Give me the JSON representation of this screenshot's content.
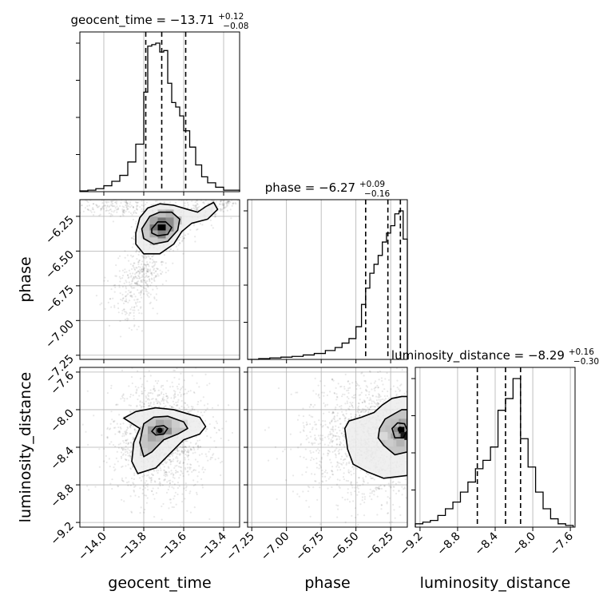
{
  "chart_data": {
    "type": "corner",
    "parameters": [
      {
        "name": "geocent_time",
        "axis_label": "geocent_time",
        "title": {
          "main": "geocent_time = −13.71",
          "plus": "+0.12",
          "minus": "−0.08"
        },
        "range": [
          -14.12,
          -13.32
        ],
        "ticks": [
          -14.0,
          -13.8,
          -13.6,
          -13.4
        ],
        "tick_labels": [
          "−14.0",
          "−13.8",
          "−13.6",
          "−13.4"
        ],
        "quantiles": [
          -13.79,
          -13.71,
          -13.59
        ],
        "histogram": {
          "edges": [
            -14.12,
            -14.08,
            -14.04,
            -14.0,
            -13.96,
            -13.92,
            -13.88,
            -13.84,
            -13.8,
            -13.78,
            -13.76,
            -13.74,
            -13.72,
            -13.7,
            -13.68,
            -13.66,
            -13.64,
            -13.62,
            -13.6,
            -13.57,
            -13.54,
            -13.51,
            -13.48,
            -13.44,
            -13.4,
            -13.32
          ],
          "counts": [
            0.5,
            1,
            2,
            4,
            7,
            11,
            20,
            32,
            67,
            98,
            99,
            100,
            94,
            95,
            73,
            60,
            57,
            51,
            41,
            30,
            18,
            10,
            6,
            3,
            1
          ]
        }
      },
      {
        "name": "phase",
        "axis_label": "phase",
        "title": {
          "main": "phase = −6.27",
          "plus": "+0.09",
          "minus": "−0.16"
        },
        "range": [
          -7.28,
          -6.13
        ],
        "ticks": [
          -7.25,
          -7.0,
          -6.75,
          -6.5,
          -6.25
        ],
        "tick_labels": [
          "−7.25",
          "−7.00",
          "−6.75",
          "−6.50",
          "−6.25"
        ],
        "quantiles": [
          -6.43,
          -6.27,
          -6.18
        ],
        "histogram": {
          "edges": [
            -7.28,
            -7.2,
            -7.12,
            -7.04,
            -6.96,
            -6.88,
            -6.8,
            -6.72,
            -6.65,
            -6.6,
            -6.55,
            -6.5,
            -6.46,
            -6.43,
            -6.4,
            -6.37,
            -6.34,
            -6.31,
            -6.28,
            -6.25,
            -6.22,
            -6.19,
            -6.16,
            -6.13
          ],
          "counts": [
            0,
            0.5,
            1,
            1.5,
            2,
            3,
            4,
            6,
            8,
            11,
            14,
            22,
            37,
            48,
            58,
            64,
            70,
            79,
            85,
            90,
            98,
            100,
            81
          ]
        }
      },
      {
        "name": "luminosity_distance",
        "axis_label": "luminosity_distance",
        "title": {
          "main": "luminosity_distance = −8.29",
          "plus": "+0.16",
          "minus": "−0.30"
        },
        "range": [
          -9.25,
          -7.55
        ],
        "ticks": [
          -9.2,
          -8.8,
          -8.4,
          -8.0,
          -7.6
        ],
        "tick_labels": [
          "−9.2",
          "−8.8",
          "−8.4",
          "−8.0",
          "−7.6"
        ],
        "quantiles": [
          -8.59,
          -8.29,
          -8.13
        ],
        "histogram": {
          "edges": [
            -9.25,
            -9.17,
            -9.09,
            -9.01,
            -8.93,
            -8.85,
            -8.77,
            -8.69,
            -8.61,
            -8.53,
            -8.45,
            -8.37,
            -8.29,
            -8.21,
            -8.13,
            -8.05,
            -7.97,
            -7.89,
            -7.81,
            -7.73,
            -7.65,
            -7.57
          ],
          "counts": [
            2,
            3,
            4,
            7,
            11,
            15,
            21,
            27,
            35,
            40,
            48,
            70,
            77,
            89,
            53,
            36,
            21,
            11,
            5,
            2,
            1
          ]
        }
      }
    ],
    "pairs": [
      {
        "x": "geocent_time",
        "y": "phase",
        "peak": [
          -13.71,
          -6.33
        ],
        "contour_levels": [
          [
            [
              -13.76,
              -6.34
            ],
            [
              -13.73,
              -6.29
            ],
            [
              -13.69,
              -6.29
            ],
            [
              -13.66,
              -6.33
            ],
            [
              -13.68,
              -6.38
            ],
            [
              -13.73,
              -6.39
            ],
            [
              -13.76,
              -6.37
            ]
          ],
          [
            [
              -13.81,
              -6.34
            ],
            [
              -13.77,
              -6.25
            ],
            [
              -13.72,
              -6.22
            ],
            [
              -13.66,
              -6.22
            ],
            [
              -13.62,
              -6.27
            ],
            [
              -13.63,
              -6.35
            ],
            [
              -13.68,
              -6.43
            ],
            [
              -13.75,
              -6.45
            ],
            [
              -13.8,
              -6.41
            ]
          ],
          [
            [
              -13.84,
              -6.37
            ],
            [
              -13.82,
              -6.26
            ],
            [
              -13.78,
              -6.19
            ],
            [
              -13.72,
              -6.16
            ],
            [
              -13.65,
              -6.17
            ],
            [
              -13.58,
              -6.2
            ],
            [
              -13.53,
              -6.22
            ],
            [
              -13.49,
              -6.18
            ],
            [
              -13.45,
              -6.15
            ],
            [
              -13.43,
              -6.2
            ],
            [
              -13.48,
              -6.27
            ],
            [
              -13.56,
              -6.3
            ],
            [
              -13.61,
              -6.36
            ],
            [
              -13.65,
              -6.45
            ],
            [
              -13.72,
              -6.52
            ],
            [
              -13.8,
              -6.52
            ],
            [
              -13.84,
              -6.45
            ]
          ]
        ],
        "density_cells": [
          {
            "x": -13.71,
            "y": -6.33,
            "level": 1.0
          },
          {
            "x": -13.71,
            "y": -6.28,
            "level": 0.55
          },
          {
            "x": -13.67,
            "y": -6.28,
            "level": 0.45
          },
          {
            "x": -13.75,
            "y": -6.33,
            "level": 0.55
          },
          {
            "x": -13.67,
            "y": -6.33,
            "level": 0.45
          },
          {
            "x": -13.71,
            "y": -6.38,
            "level": 0.5
          },
          {
            "x": -13.75,
            "y": -6.38,
            "level": 0.35
          },
          {
            "x": -13.67,
            "y": -6.23,
            "level": 0.3
          },
          {
            "x": -13.71,
            "y": -6.23,
            "level": 0.25
          },
          {
            "x": -13.75,
            "y": -6.28,
            "level": 0.35
          },
          {
            "x": -13.63,
            "y": -6.28,
            "level": 0.25
          },
          {
            "x": -13.79,
            "y": -6.38,
            "level": 0.2
          },
          {
            "x": -13.75,
            "y": -6.43,
            "level": 0.2
          }
        ],
        "point_clouds": [
          {
            "center": [
              -13.71,
              -6.33
            ],
            "spread": [
              0.06,
              0.09
            ],
            "n": 650
          },
          {
            "center": [
              -13.8,
              -6.65
            ],
            "spread": [
              0.05,
              0.1
            ],
            "n": 260
          },
          {
            "center": [
              -13.88,
              -6.85
            ],
            "spread": [
              0.05,
              0.12
            ],
            "n": 130
          },
          {
            "center": [
              -13.95,
              -6.18
            ],
            "spread": [
              0.12,
              0.03
            ],
            "n": 180
          },
          {
            "center": [
              -13.5,
              -6.2
            ],
            "spread": [
              0.06,
              0.05
            ],
            "n": 160
          },
          {
            "center": [
              -13.4,
              -6.15
            ],
            "spread": [
              0.04,
              0.02
            ],
            "n": 60
          }
        ]
      },
      {
        "x": "geocent_time",
        "y": "luminosity_distance",
        "peak": [
          -13.72,
          -8.22
        ],
        "contour_levels": [
          [
            [
              -13.74,
              -8.18
            ],
            [
              -13.7,
              -8.17
            ],
            [
              -13.68,
              -8.2
            ],
            [
              -13.7,
              -8.26
            ],
            [
              -13.74,
              -8.27
            ],
            [
              -13.76,
              -8.23
            ]
          ],
          [
            [
              -13.8,
              -8.15
            ],
            [
              -13.75,
              -8.08
            ],
            [
              -13.68,
              -8.07
            ],
            [
              -13.6,
              -8.13
            ],
            [
              -13.58,
              -8.2
            ],
            [
              -13.63,
              -8.26
            ],
            [
              -13.7,
              -8.32
            ],
            [
              -13.76,
              -8.45
            ],
            [
              -13.8,
              -8.5
            ],
            [
              -13.82,
              -8.35
            ]
          ],
          [
            [
              -13.9,
              -8.09
            ],
            [
              -13.84,
              -8.02
            ],
            [
              -13.74,
              -7.98
            ],
            [
              -13.65,
              -8.0
            ],
            [
              -13.57,
              -8.05
            ],
            [
              -13.52,
              -8.08
            ],
            [
              -13.49,
              -8.18
            ],
            [
              -13.52,
              -8.26
            ],
            [
              -13.6,
              -8.32
            ],
            [
              -13.67,
              -8.47
            ],
            [
              -13.74,
              -8.62
            ],
            [
              -13.83,
              -8.68
            ],
            [
              -13.86,
              -8.55
            ],
            [
              -13.85,
              -8.35
            ],
            [
              -13.82,
              -8.2
            ]
          ]
        ],
        "density_cells": [
          {
            "x": -13.72,
            "y": -8.22,
            "level": 0.65
          },
          {
            "x": -13.68,
            "y": -8.22,
            "level": 0.45
          },
          {
            "x": -13.76,
            "y": -8.22,
            "level": 0.4
          },
          {
            "x": -13.72,
            "y": -8.15,
            "level": 0.35
          },
          {
            "x": -13.68,
            "y": -8.15,
            "level": 0.3
          },
          {
            "x": -13.76,
            "y": -8.3,
            "level": 0.35
          },
          {
            "x": -13.72,
            "y": -8.3,
            "level": 0.3
          },
          {
            "x": -13.64,
            "y": -8.15,
            "level": 0.2
          },
          {
            "x": -13.6,
            "y": -8.15,
            "level": 0.15
          },
          {
            "x": -13.76,
            "y": -8.38,
            "level": 0.25
          },
          {
            "x": -13.8,
            "y": -8.45,
            "level": 0.2
          },
          {
            "x": -13.8,
            "y": -8.22,
            "level": 0.2
          }
        ],
        "point_clouds": [
          {
            "center": [
              -13.72,
              -8.3
            ],
            "spread": [
              0.12,
              0.3
            ],
            "n": 1500
          }
        ]
      },
      {
        "x": "phase",
        "y": "luminosity_distance",
        "peak": [
          -6.18,
          -8.21
        ],
        "contour_levels": [
          [
            [
              -6.24,
              -8.2
            ],
            [
              -6.2,
              -8.14
            ],
            [
              -6.15,
              -8.15
            ],
            [
              -6.13,
              -8.22
            ],
            [
              -6.16,
              -8.3
            ],
            [
              -6.22,
              -8.3
            ]
          ],
          [
            [
              -6.33,
              -8.2
            ],
            [
              -6.29,
              -8.1
            ],
            [
              -6.22,
              -8.04
            ],
            [
              -6.17,
              -8.0
            ],
            [
              -6.13,
              -8.0
            ],
            [
              -6.13,
              -8.45
            ],
            [
              -6.22,
              -8.48
            ],
            [
              -6.3,
              -8.38
            ],
            [
              -6.34,
              -8.3
            ]
          ],
          [
            [
              -6.58,
              -8.2
            ],
            [
              -6.55,
              -8.12
            ],
            [
              -6.46,
              -8.08
            ],
            [
              -6.37,
              -8.03
            ],
            [
              -6.31,
              -7.95
            ],
            [
              -6.24,
              -7.88
            ],
            [
              -6.17,
              -7.86
            ],
            [
              -6.13,
              -7.86
            ],
            [
              -6.13,
              -8.7
            ],
            [
              -6.3,
              -8.73
            ],
            [
              -6.42,
              -8.66
            ],
            [
              -6.52,
              -8.58
            ],
            [
              -6.56,
              -8.42
            ]
          ]
        ],
        "density_cells": [
          {
            "x": -6.18,
            "y": -8.21,
            "level": 1.0
          },
          {
            "x": -6.15,
            "y": -8.28,
            "level": 0.9
          },
          {
            "x": -6.22,
            "y": -8.21,
            "level": 0.45
          },
          {
            "x": -6.18,
            "y": -8.14,
            "level": 0.4
          },
          {
            "x": -6.15,
            "y": -8.14,
            "level": 0.35
          },
          {
            "x": -6.22,
            "y": -8.28,
            "level": 0.35
          },
          {
            "x": -6.22,
            "y": -8.14,
            "level": 0.25
          },
          {
            "x": -6.26,
            "y": -8.21,
            "level": 0.25
          },
          {
            "x": -6.18,
            "y": -8.35,
            "level": 0.3
          },
          {
            "x": -6.26,
            "y": -8.35,
            "level": 0.2
          },
          {
            "x": -6.3,
            "y": -8.28,
            "level": 0.15
          }
        ],
        "point_clouds": [
          {
            "center": [
              -6.32,
              -8.32
            ],
            "spread": [
              0.13,
              0.3
            ],
            "n": 1000
          },
          {
            "center": [
              -6.6,
              -8.3
            ],
            "spread": [
              0.18,
              0.33
            ],
            "n": 550
          }
        ]
      }
    ],
    "grid": true
  }
}
